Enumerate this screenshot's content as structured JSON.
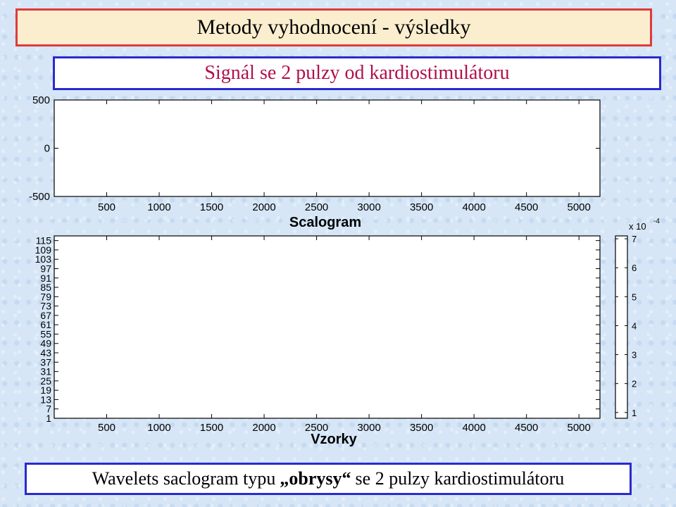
{
  "slide": {
    "title": "Metody vyhodnocení - výsledky",
    "subtitle": "Signál se 2 pulzy od kardiostimulátoru",
    "caption_pre": "Wavelets saclogram typu ",
    "caption_bold": "„obrysy“",
    "caption_post": " se 2 pulzy kardiostimulátoru"
  },
  "chart_data": [
    {
      "type": "line",
      "title": "",
      "xlabel": "",
      "ylabel": "",
      "x_ticks": [
        500,
        1000,
        1500,
        2000,
        2500,
        3000,
        3500,
        4000,
        4500,
        5000
      ],
      "y_ticks": [
        -500,
        0,
        500
      ],
      "xlim": [
        0,
        5200
      ],
      "ylim": [
        -500,
        500
      ],
      "series": []
    },
    {
      "type": "heatmap",
      "title": "Scalogram",
      "xlabel": "Vzorky",
      "ylabel": "",
      "x_ticks": [
        500,
        1000,
        1500,
        2000,
        2500,
        3000,
        3500,
        4000,
        4500,
        5000
      ],
      "y_ticks": [
        115,
        109,
        103,
        97,
        91,
        85,
        79,
        73,
        67,
        61,
        55,
        49,
        43,
        37,
        31,
        25,
        19,
        13,
        7,
        1
      ],
      "xlim": [
        0,
        5200
      ],
      "ylim": [
        1,
        118
      ],
      "colorbar": {
        "ticks": [
          1,
          2,
          3,
          4,
          5,
          6,
          7
        ],
        "exponent_base": "x 10",
        "exponent_power": "-4"
      }
    }
  ],
  "colors": {
    "title_border": "#e03a3a",
    "title_bg": "#fbeecf",
    "subtitle_border": "#2a2ad0",
    "subtitle_text": "#b0104a"
  }
}
